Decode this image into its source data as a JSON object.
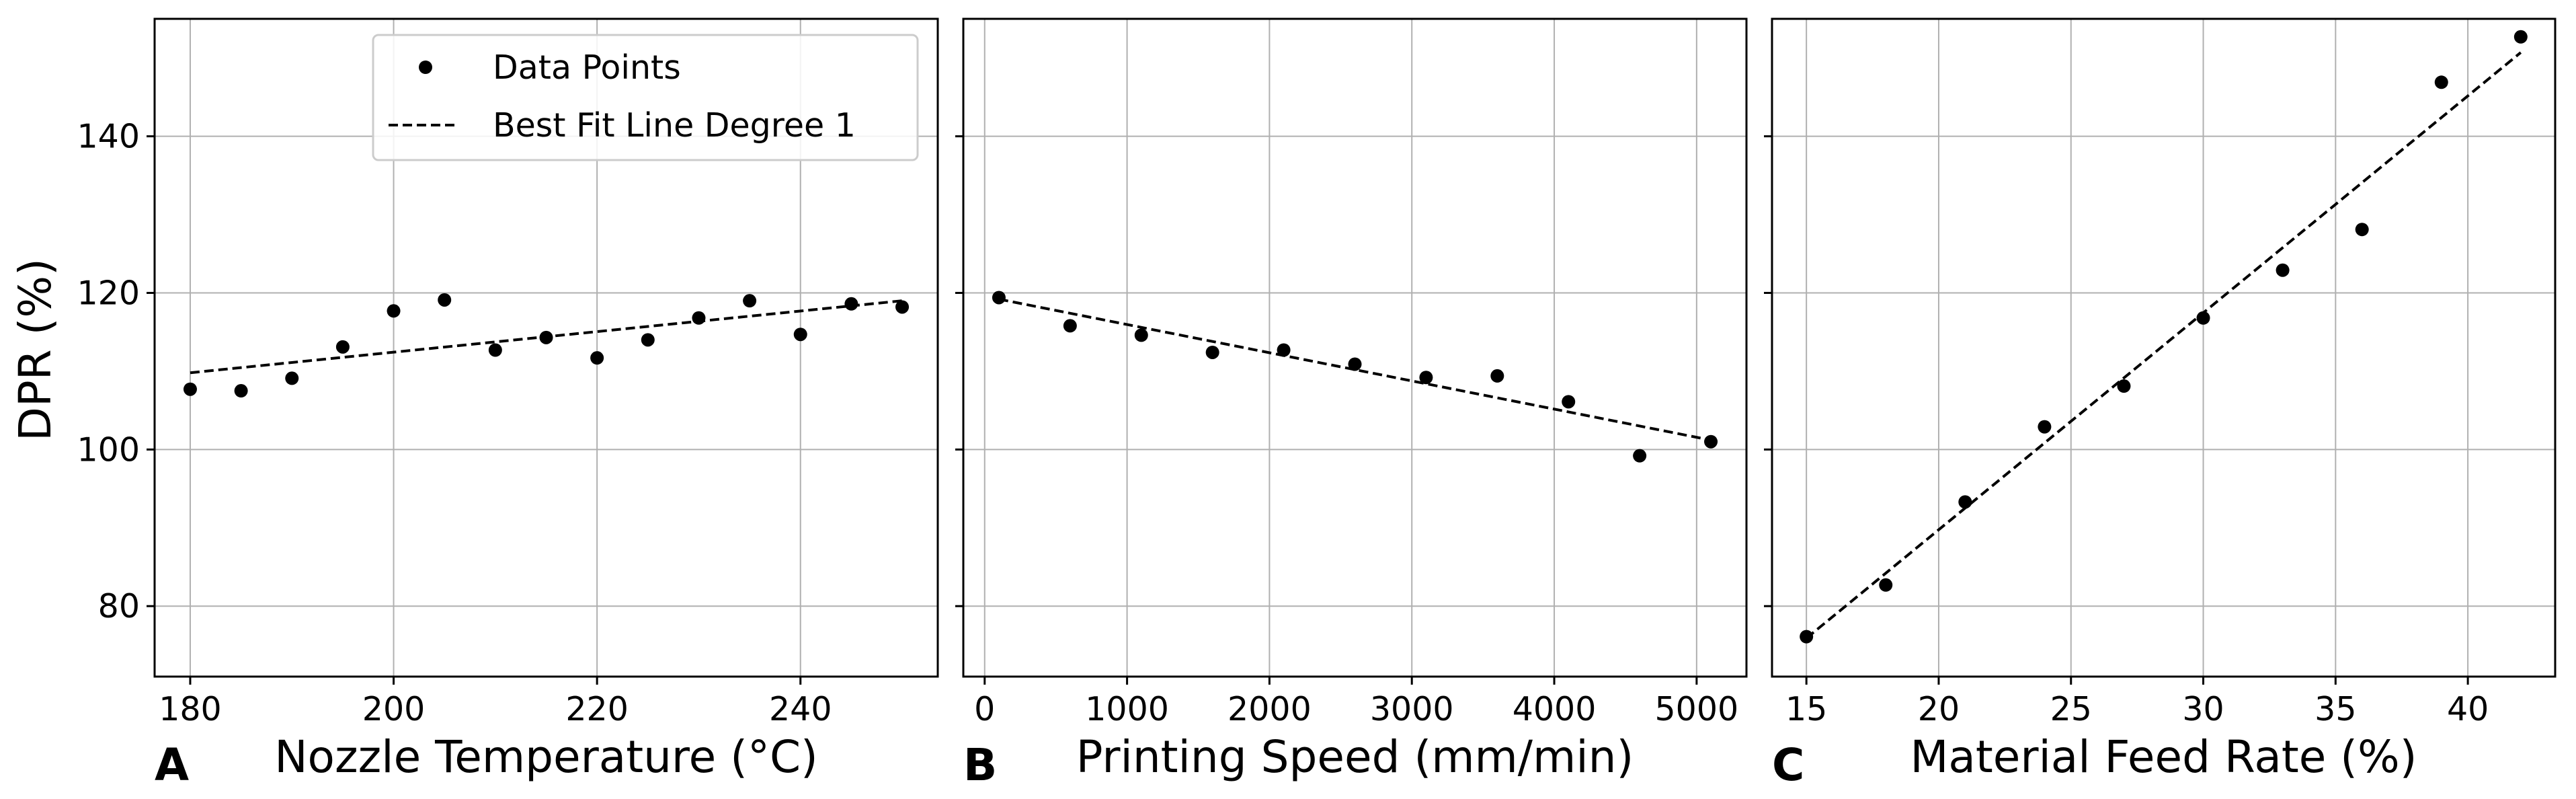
{
  "figure": {
    "shared_ylabel": "DPR (%)",
    "y_ticks": [
      80,
      100,
      120,
      140
    ],
    "legend": {
      "points_label": "Data Points",
      "line_label": "Best Fit Line Degree 1"
    }
  },
  "chart_data": [
    {
      "type": "scatter",
      "panel": "A",
      "xlabel": "Nozzle Temperature (°C)",
      "ylabel": "DPR (%)",
      "xlim": [
        176.5,
        253.5
      ],
      "ylim": [
        71,
        155
      ],
      "x_ticks": [
        180,
        200,
        220,
        240
      ],
      "grid": true,
      "series": [
        {
          "name": "Data Points",
          "style": "markers",
          "x": [
            180,
            185,
            190,
            195,
            200,
            205,
            210,
            215,
            220,
            225,
            230,
            235,
            240,
            245,
            250
          ],
          "y": [
            107.7,
            107.5,
            109.1,
            113.1,
            117.7,
            119.1,
            112.7,
            114.3,
            111.7,
            114.0,
            116.8,
            119.0,
            114.7,
            118.6,
            118.2
          ]
        },
        {
          "name": "Best Fit Line Degree 1",
          "style": "dashed",
          "x": [
            180,
            250
          ],
          "y": [
            109.8,
            119.0
          ]
        }
      ]
    },
    {
      "type": "scatter",
      "panel": "B",
      "xlabel": "Printing Speed (mm/min)",
      "ylabel": "",
      "xlim": [
        -150,
        5350
      ],
      "ylim": [
        71,
        155
      ],
      "x_ticks": [
        0,
        1000,
        2000,
        3000,
        4000,
        5000
      ],
      "grid": true,
      "series": [
        {
          "name": "Data Points",
          "style": "markers",
          "x": [
            100,
            600,
            1100,
            1600,
            2100,
            2600,
            3100,
            3600,
            4100,
            4600,
            5100
          ],
          "y": [
            119.4,
            115.8,
            114.6,
            112.4,
            112.7,
            110.9,
            109.2,
            109.4,
            106.1,
            99.2,
            101.0
          ]
        },
        {
          "name": "Best Fit Line Degree 1",
          "style": "dashed",
          "x": [
            100,
            5100
          ],
          "y": [
            119.2,
            101.2
          ]
        }
      ]
    },
    {
      "type": "scatter",
      "panel": "C",
      "xlabel": "Material Feed Rate (%)",
      "ylabel": "",
      "xlim": [
        13.7,
        43.3
      ],
      "ylim": [
        71,
        155
      ],
      "x_ticks": [
        15,
        20,
        25,
        30,
        35,
        40
      ],
      "grid": true,
      "series": [
        {
          "name": "Data Points",
          "style": "markers",
          "x": [
            15,
            18,
            21,
            24,
            27,
            30,
            33,
            36,
            39,
            42
          ],
          "y": [
            76.1,
            82.7,
            93.3,
            102.9,
            108.1,
            116.8,
            122.9,
            128.1,
            146.9,
            152.7
          ]
        },
        {
          "name": "Best Fit Line Degree 1",
          "style": "dashed",
          "x": [
            15,
            42
          ],
          "y": [
            75.9,
            150.7
          ]
        }
      ]
    }
  ]
}
